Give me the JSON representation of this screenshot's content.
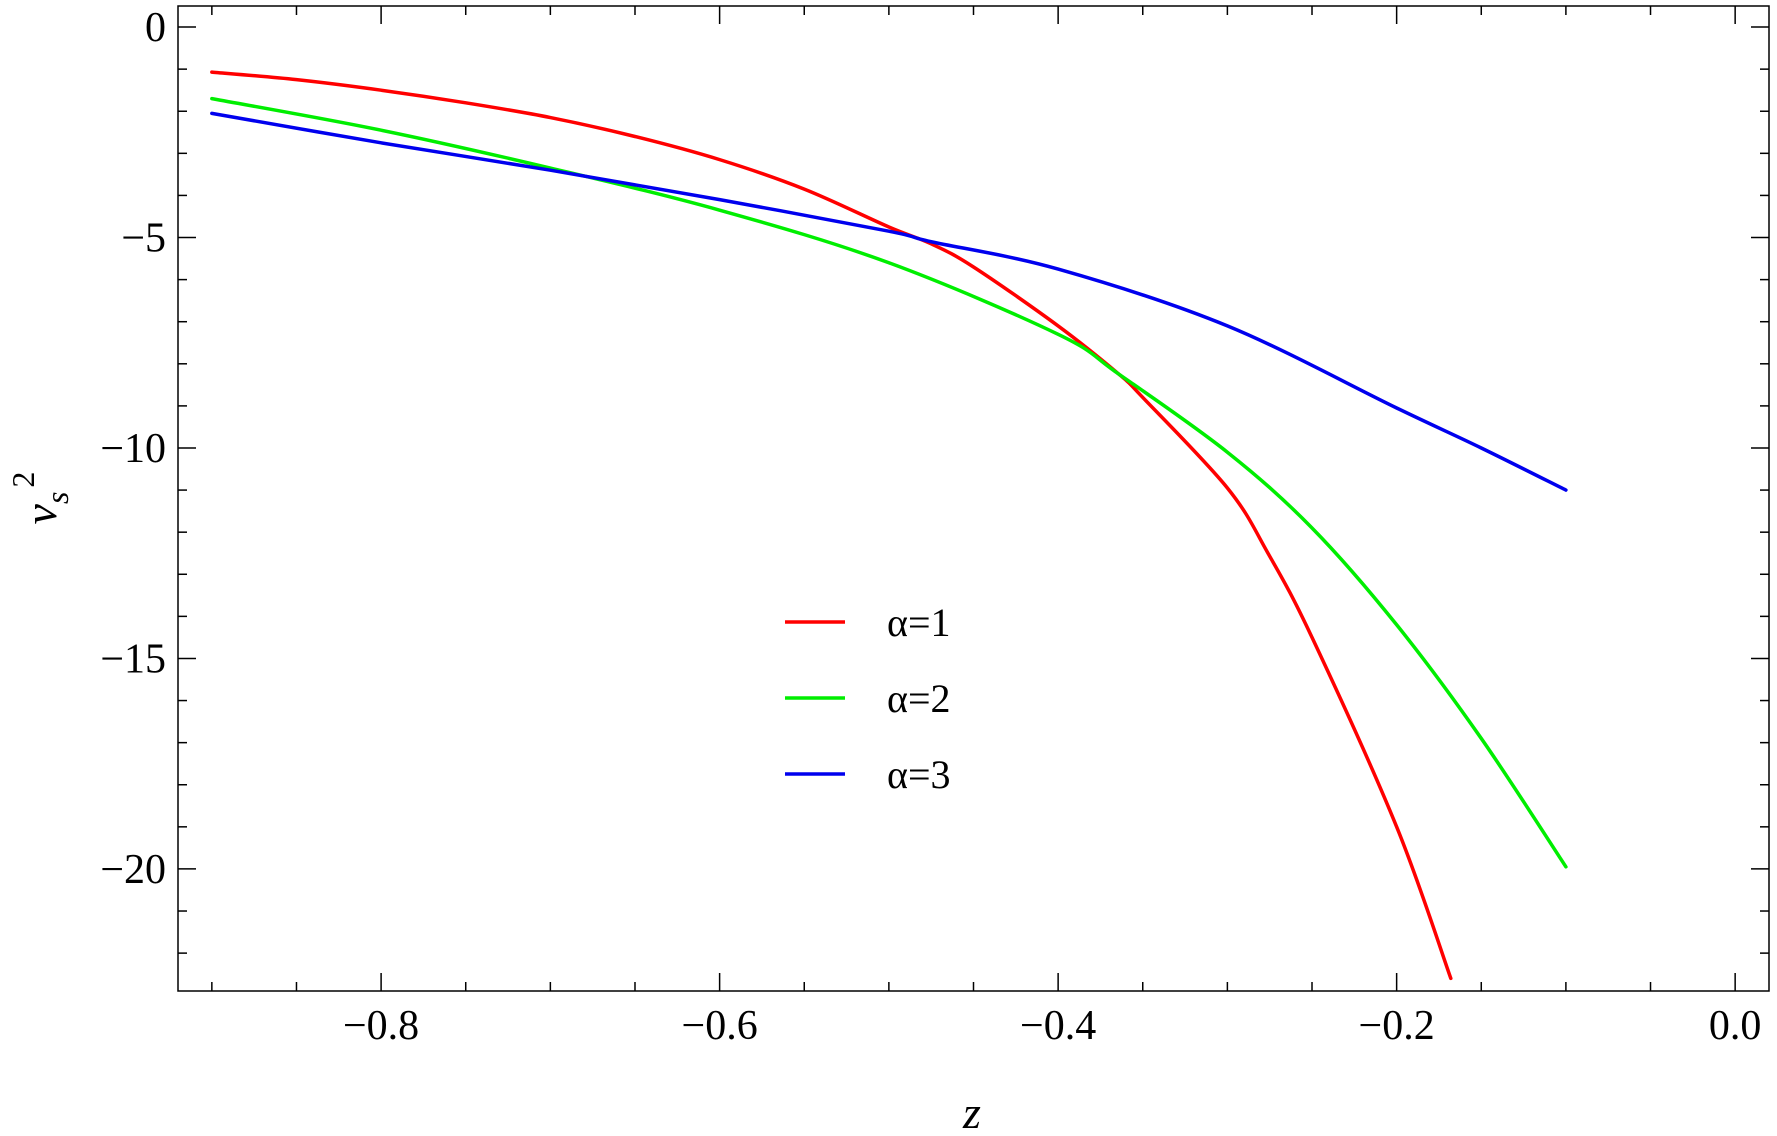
{
  "chart_data": {
    "type": "line",
    "title": "",
    "xlabel": "z",
    "ylabel": {
      "base": "v",
      "sub": "s",
      "sup": "2"
    },
    "xlim": [
      -0.92,
      0.02
    ],
    "ylim": [
      -22.9,
      0.5
    ],
    "x_ticks": [
      {
        "value": -0.8,
        "label": "−0.8"
      },
      {
        "value": -0.6,
        "label": "−0.6"
      },
      {
        "value": -0.4,
        "label": "−0.4"
      },
      {
        "value": -0.2,
        "label": "−0.2"
      },
      {
        "value": 0.0,
        "label": "0.0"
      }
    ],
    "y_ticks": [
      {
        "value": 0,
        "label": "0"
      },
      {
        "value": -5,
        "label": "−5"
      },
      {
        "value": -10,
        "label": "−10"
      },
      {
        "value": -15,
        "label": "−15"
      },
      {
        "value": -20,
        "label": "−20"
      }
    ],
    "x_minor_step": 0.05,
    "y_minor_step": 1,
    "grid": false,
    "legend_position": "center",
    "series": [
      {
        "name": "α=1",
        "color": "#ff0000",
        "x": [
          -0.9,
          -0.85,
          -0.8,
          -0.75,
          -0.7,
          -0.65,
          -0.6,
          -0.55,
          -0.5,
          -0.475,
          -0.45,
          -0.4,
          -0.364,
          -0.35,
          -0.3,
          -0.276,
          -0.25,
          -0.2,
          -0.168
        ],
        "y": [
          -1.07,
          -1.25,
          -1.5,
          -1.8,
          -2.15,
          -2.6,
          -3.15,
          -3.85,
          -4.75,
          -5.15,
          -5.7,
          -7.1,
          -8.25,
          -8.8,
          -10.95,
          -12.5,
          -14.5,
          -19.0,
          -22.6
        ]
      },
      {
        "name": "α=2",
        "color": "#00ee00",
        "x": [
          -0.9,
          -0.8,
          -0.7,
          -0.6,
          -0.5,
          -0.4,
          -0.364,
          -0.3,
          -0.25,
          -0.2,
          -0.15,
          -0.1
        ],
        "y": [
          -1.7,
          -2.45,
          -3.35,
          -4.35,
          -5.6,
          -7.3,
          -8.25,
          -10.1,
          -11.9,
          -14.2,
          -16.9,
          -19.95
        ]
      },
      {
        "name": "α=3",
        "color": "#0000ee",
        "x": [
          -0.9,
          -0.8,
          -0.7,
          -0.6,
          -0.5,
          -0.475,
          -0.4,
          -0.3,
          -0.2,
          -0.15,
          -0.1
        ],
        "y": [
          -2.05,
          -2.75,
          -3.4,
          -4.1,
          -4.85,
          -5.1,
          -5.75,
          -7.1,
          -9.05,
          -10.0,
          -11.0
        ]
      }
    ]
  }
}
